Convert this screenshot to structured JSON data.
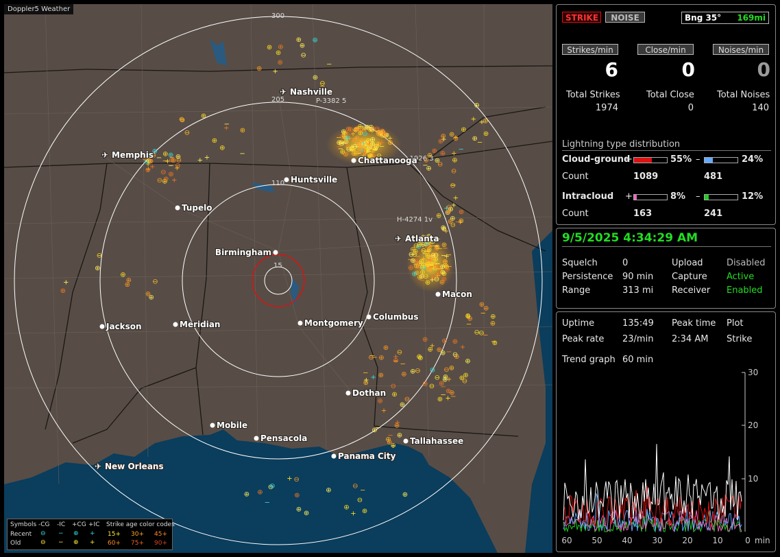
{
  "map": {
    "brand": "Doppler5 Weather",
    "ring_labels": [
      "300",
      "205",
      "110",
      "15"
    ],
    "cities": [
      {
        "name": "Nashville",
        "airport": true
      },
      {
        "name": "Memphis",
        "airport": true
      },
      {
        "name": "Chattanooga",
        "airport": false
      },
      {
        "name": "Huntsville",
        "airport": false
      },
      {
        "name": "Tupelo",
        "airport": false
      },
      {
        "name": "Birmingham",
        "airport": false
      },
      {
        "name": "Atlanta",
        "airport": true
      },
      {
        "name": "Macon",
        "airport": false
      },
      {
        "name": "Jackson",
        "airport": false
      },
      {
        "name": "Meridian",
        "airport": false
      },
      {
        "name": "Montgomery",
        "airport": false
      },
      {
        "name": "Columbus",
        "airport": false
      },
      {
        "name": "Dothan",
        "airport": false
      },
      {
        "name": "Mobile",
        "airport": false
      },
      {
        "name": "Pensacola",
        "airport": false
      },
      {
        "name": "Tallahassee",
        "airport": false
      },
      {
        "name": "Panama City",
        "airport": false
      },
      {
        "name": "New Orleans",
        "airport": true
      }
    ],
    "aircraft_tags": [
      "P-3382  5",
      "-1926  3",
      "H-4274  1v"
    ],
    "legend": {
      "symbols_label": "Symbols",
      "cols": [
        "-CG",
        "-IC",
        "+CG",
        "+IC"
      ],
      "age_title": "Strike age color codes",
      "recent_label": "Recent",
      "old_label": "Old",
      "recent_ages": [
        "15+",
        "30+",
        "45+"
      ],
      "old_ages": [
        "60+",
        "75+",
        "90+"
      ]
    }
  },
  "top": {
    "strike_btn": "STRIKE",
    "noise_btn": "NOISE",
    "bearing": "Bng 35°",
    "distance": "169mi",
    "strikes_min_btn": "Strikes/min",
    "close_min_btn": "Close/min",
    "noises_min_btn": "Noises/min",
    "strikes_min": "6",
    "close_min": "0",
    "noises_min": "0",
    "total_strikes_label": "Total Strikes",
    "total_close_label": "Total Close",
    "total_noises_label": "Total Noises",
    "total_strikes": "1974",
    "total_close": "0",
    "total_noises": "140",
    "dist_title": "Lightning type distribution",
    "cg_label": "Cloud-ground",
    "ic_label": "Intracloud",
    "count_label": "Count",
    "plus": "+",
    "minus": "–",
    "cg_pos_pct": "55%",
    "cg_neg_pct": "24%",
    "ic_pos_pct": "8%",
    "ic_neg_pct": "12%",
    "cg_pos_count": "1089",
    "cg_neg_count": "481",
    "ic_pos_count": "163",
    "ic_neg_count": "241",
    "cg_pos_frac": 0.55,
    "cg_neg_frac": 0.24,
    "ic_pos_frac": 0.08,
    "ic_neg_frac": 0.12
  },
  "status": {
    "datetime": "9/5/2025 4:34:29 AM",
    "rows": [
      {
        "k1": "Squelch",
        "v1": "0",
        "k2": "Upload",
        "v2": "Disabled"
      },
      {
        "k1": "Persistence",
        "v1": "90 min",
        "k2": "Capture",
        "v2": "Active"
      },
      {
        "k1": "Range",
        "v1": "313 mi",
        "k2": "Receiver",
        "v2": "Enabled"
      }
    ]
  },
  "trend": {
    "uptime_label": "Uptime",
    "uptime": "135:49",
    "peak_time_label": "Peak time",
    "plot_label": "Plot",
    "peak_rate_label": "Peak rate",
    "peak_rate": "23/min",
    "peak_time": "2:34 AM",
    "plot": "Strike",
    "graph_label": "Trend graph",
    "graph_span": "60 min",
    "y_ticks": [
      "30",
      "20",
      "10"
    ],
    "x_ticks": [
      "60",
      "50",
      "40",
      "30",
      "20",
      "10",
      "0"
    ],
    "x_unit": "min"
  },
  "colors": {
    "accent_green": "#22dd22",
    "strike_red": "#dd1111",
    "cg_neg_blue": "#66aaff",
    "ic_pos_pink": "#ee66bb",
    "ic_neg_green": "#22cc22",
    "map_land": "#574d46",
    "map_water": "#0b3d5c"
  }
}
